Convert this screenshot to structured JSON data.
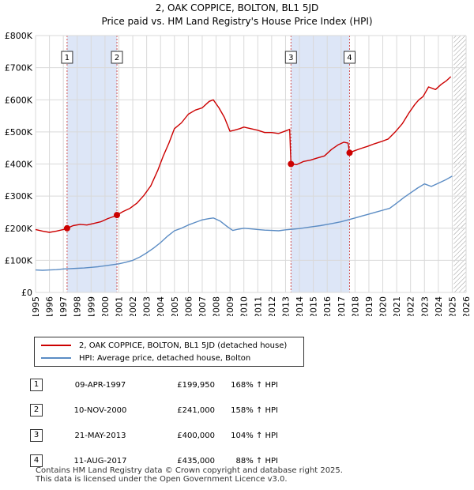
{
  "chart_data": {
    "type": "line",
    "title": "2, OAK COPPICE, BOLTON, BL1 5JD",
    "subtitle": "Price paid vs. HM Land Registry's House Price Index (HPI)",
    "xlabel": "",
    "ylabel": "",
    "xlim": [
      1995,
      2026
    ],
    "ylim": [
      0,
      800000
    ],
    "y_ticks": [
      {
        "value": 0,
        "label": "£0"
      },
      {
        "value": 100000,
        "label": "£100K"
      },
      {
        "value": 200000,
        "label": "£200K"
      },
      {
        "value": 300000,
        "label": "£300K"
      },
      {
        "value": 400000,
        "label": "£400K"
      },
      {
        "value": 500000,
        "label": "£500K"
      },
      {
        "value": 600000,
        "label": "£600K"
      },
      {
        "value": 700000,
        "label": "£700K"
      },
      {
        "value": 800000,
        "label": "£800K"
      }
    ],
    "x_ticks": [
      "1995",
      "1996",
      "1997",
      "1998",
      "1999",
      "2000",
      "2001",
      "2002",
      "2003",
      "2004",
      "2005",
      "2006",
      "2007",
      "2008",
      "2009",
      "2010",
      "2011",
      "2012",
      "2013",
      "2014",
      "2015",
      "2016",
      "2017",
      "2018",
      "2019",
      "2020",
      "2021",
      "2022",
      "2023",
      "2024",
      "2025",
      "2026"
    ],
    "grid": true,
    "hatched_region_from": 2025.1,
    "shaded_periods": [
      [
        1997.27,
        2000.86
      ],
      [
        2013.39,
        2017.61
      ]
    ],
    "series": [
      {
        "name": "2, OAK COPPICE, BOLTON, BL1 5JD (detached house)",
        "color": "#cc0000",
        "x": [
          1995.0,
          1995.5,
          1996.0,
          1996.5,
          1997.0,
          1997.27,
          1997.7,
          1998.2,
          1998.7,
          1999.2,
          1999.7,
          2000.2,
          2000.6,
          2000.86,
          2001.3,
          2001.8,
          2002.3,
          2002.8,
          2003.3,
          2003.8,
          2004.2,
          2004.6,
          2005.0,
          2005.5,
          2006.0,
          2006.5,
          2007.0,
          2007.5,
          2007.8,
          2008.2,
          2008.6,
          2009.0,
          2009.3,
          2009.7,
          2010.0,
          2010.5,
          2011.0,
          2011.5,
          2012.0,
          2012.5,
          2013.0,
          2013.3,
          2013.39,
          2013.8,
          2014.3,
          2014.8,
          2015.3,
          2015.8,
          2016.3,
          2016.8,
          2017.2,
          2017.5,
          2017.61,
          2017.9,
          2018.4,
          2018.9,
          2019.4,
          2019.9,
          2020.4,
          2020.9,
          2021.4,
          2021.9,
          2022.3,
          2022.6,
          2022.9,
          2023.3,
          2023.8,
          2024.2,
          2024.6,
          2024.9
        ],
        "values": [
          196000,
          191000,
          187000,
          191000,
          196000,
          199950,
          208000,
          212000,
          210000,
          215000,
          220000,
          230000,
          236000,
          241000,
          252000,
          262000,
          278000,
          302000,
          332000,
          380000,
          425000,
          465000,
          510000,
          528000,
          555000,
          568000,
          575000,
          595000,
          600000,
          575000,
          545000,
          502000,
          505000,
          510000,
          515000,
          510000,
          505000,
          498000,
          498000,
          495000,
          503000,
          508000,
          400000,
          398000,
          408000,
          412000,
          419000,
          425000,
          445000,
          460000,
          468000,
          465000,
          435000,
          440000,
          448000,
          455000,
          463000,
          470000,
          478000,
          500000,
          525000,
          560000,
          585000,
          600000,
          610000,
          640000,
          632000,
          648000,
          660000,
          672000
        ]
      },
      {
        "name": "HPI: Average price, detached house, Bolton",
        "color": "#5b8cc4",
        "x": [
          1995.0,
          1995.5,
          1996.0,
          1996.5,
          1997.0,
          1997.5,
          1998.0,
          1998.5,
          1999.0,
          1999.5,
          2000.0,
          2000.5,
          2001.0,
          2001.5,
          2002.0,
          2002.5,
          2003.0,
          2003.5,
          2004.0,
          2004.5,
          2005.0,
          2005.5,
          2006.0,
          2006.5,
          2007.0,
          2007.5,
          2007.8,
          2008.3,
          2008.8,
          2009.2,
          2009.6,
          2010.0,
          2010.5,
          2011.0,
          2011.5,
          2012.0,
          2012.5,
          2013.0,
          2013.5,
          2014.0,
          2014.5,
          2015.0,
          2015.5,
          2016.0,
          2016.5,
          2017.0,
          2017.5,
          2018.0,
          2018.5,
          2019.0,
          2019.5,
          2020.0,
          2020.5,
          2021.0,
          2021.5,
          2022.0,
          2022.5,
          2023.0,
          2023.5,
          2024.0,
          2024.5,
          2025.0
        ],
        "values": [
          70000,
          69000,
          70000,
          71000,
          73000,
          74000,
          75000,
          76000,
          78000,
          80000,
          83000,
          86000,
          89000,
          94000,
          100000,
          110000,
          123000,
          138000,
          155000,
          175000,
          192000,
          200000,
          210000,
          218000,
          226000,
          230000,
          232000,
          222000,
          205000,
          193000,
          197000,
          200000,
          198000,
          196000,
          194000,
          193000,
          192000,
          195000,
          197000,
          199000,
          202000,
          205000,
          208000,
          212000,
          216000,
          220000,
          226000,
          232000,
          238000,
          244000,
          250000,
          256000,
          262000,
          278000,
          295000,
          310000,
          325000,
          338000,
          330000,
          340000,
          350000,
          362000
        ]
      }
    ],
    "markers": [
      {
        "label": "1",
        "x": 1997.27,
        "value": 199950
      },
      {
        "label": "2",
        "x": 2000.86,
        "value": 241000
      },
      {
        "label": "3",
        "x": 2013.39,
        "value": 400000
      },
      {
        "label": "4",
        "x": 2017.61,
        "value": 435000
      }
    ]
  },
  "legend": {
    "items": [
      {
        "label": "2, OAK COPPICE, BOLTON, BL1 5JD (detached house)",
        "color": "#cc0000"
      },
      {
        "label": "HPI: Average price, detached house, Bolton",
        "color": "#5b8cc4"
      }
    ]
  },
  "sales": [
    {
      "num": "1",
      "date": "09-APR-1997",
      "price": "£199,950",
      "hpi": "168% ↑ HPI"
    },
    {
      "num": "2",
      "date": "10-NOV-2000",
      "price": "£241,000",
      "hpi": "158% ↑ HPI"
    },
    {
      "num": "3",
      "date": "21-MAY-2013",
      "price": "£400,000",
      "hpi": "104% ↑ HPI"
    },
    {
      "num": "4",
      "date": "11-AUG-2017",
      "price": "£435,000",
      "hpi": "88% ↑ HPI"
    }
  ],
  "footer": {
    "line1": "Contains HM Land Registry data © Crown copyright and database right 2025.",
    "line2": "This data is licensed under the Open Government Licence v3.0."
  }
}
